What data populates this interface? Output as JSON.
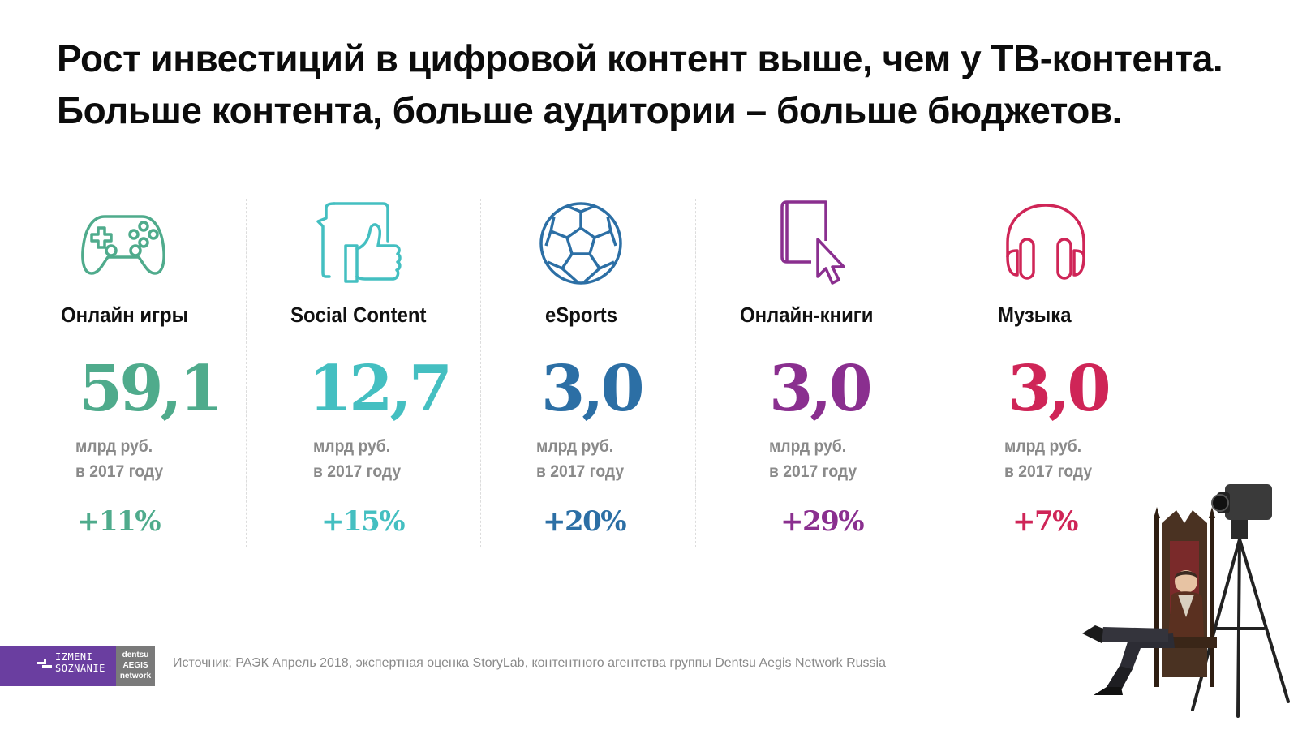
{
  "title": {
    "line1": "Рост инвестиций в цифровой контент выше, чем у ТВ-контента.",
    "line2": "Больше контента, больше аудитории – больше бюджетов."
  },
  "categories": [
    {
      "label": "Онлайн игры",
      "value": "59,1",
      "unit_line1": "млрд руб.",
      "unit_line2": "в 2017 году",
      "growth": "+11%",
      "color": "#4fab8c",
      "icon": "gamepad-icon"
    },
    {
      "label": "Social Content",
      "value": "12,7",
      "unit_line1": "млрд руб.",
      "unit_line2": "в 2017 году",
      "growth": "+15%",
      "color": "#44bfc1",
      "icon": "thumbs-up-icon"
    },
    {
      "label": "eSports",
      "value": "3,0",
      "unit_line1": "млрд руб.",
      "unit_line2": "в 2017 году",
      "growth": "+20%",
      "color": "#2c6fa5",
      "icon": "soccer-ball-icon"
    },
    {
      "label": "Онлайн-книги",
      "value": "3,0",
      "unit_line1": "млрд руб.",
      "unit_line2": "в 2017 году",
      "growth": "+29%",
      "color": "#8a2f8f",
      "icon": "ebook-cursor-icon"
    },
    {
      "label": "Музыка",
      "value": "3,0",
      "unit_line1": "млрд руб.",
      "unit_line2": "в 2017 году",
      "growth": "+7%",
      "color": "#cf2557",
      "icon": "headphones-icon"
    }
  ],
  "footer": {
    "logo1_line1": "IZMENI",
    "logo1_line2": "SOZNANIE",
    "logo2_line1": "dentsu",
    "logo2_line2": "AEGIS",
    "logo2_line3": "network",
    "source": "Источник: РАЭК Апрель 2018, экспертная оценка StoryLab, контентного агентства группы Dentsu Aegis Network Russia"
  }
}
